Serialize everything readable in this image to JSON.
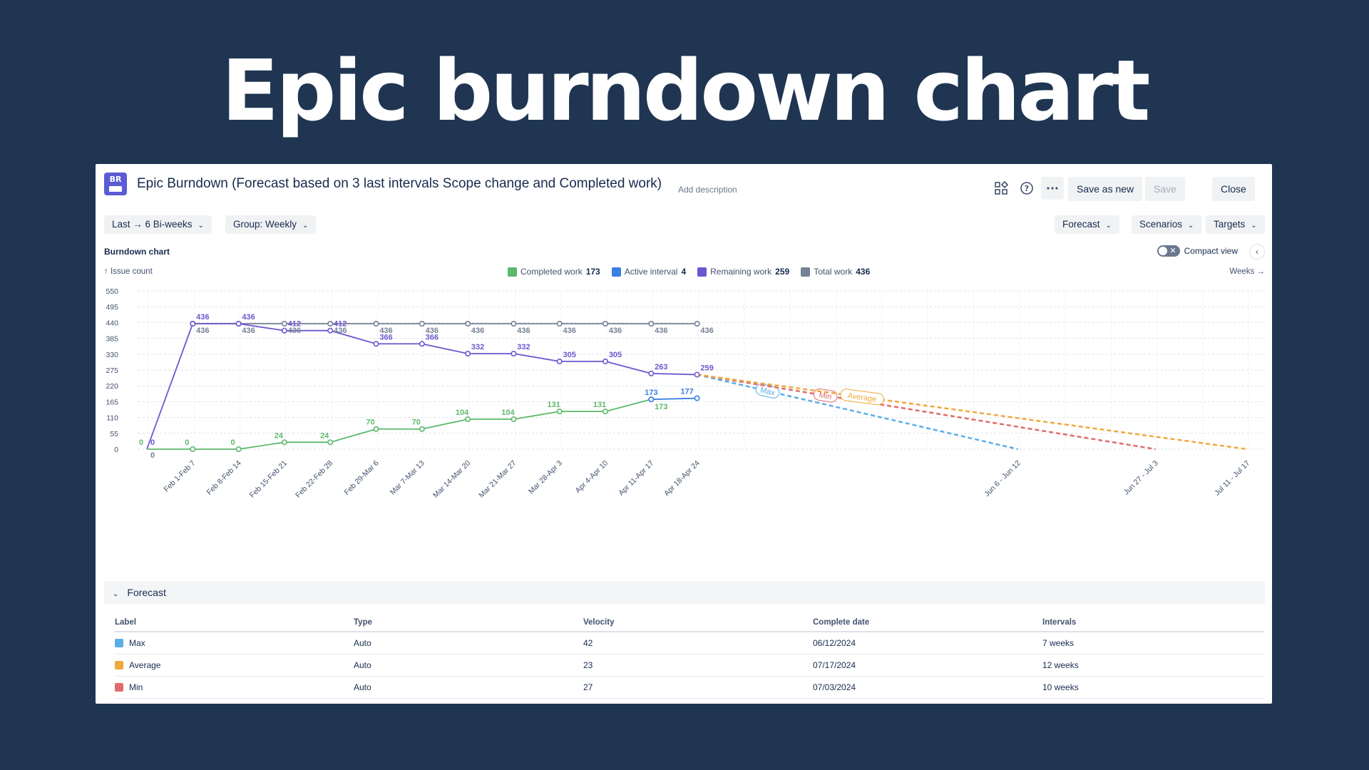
{
  "hero": {
    "title": "Epic burndown chart"
  },
  "header": {
    "app_badge": "BR",
    "title": "Epic Burndown (Forecast based on 3 last intervals Scope change and Completed work)",
    "add_description": "Add description",
    "save_as_new": "Save as new",
    "save": "Save",
    "close": "Close",
    "icons": [
      "dashboard-icon",
      "help-icon",
      "more-icon"
    ]
  },
  "filters": {
    "range": "Last → 6 Bi-weeks",
    "group": "Group: Weekly",
    "forecast": "Forecast",
    "scenarios": "Scenarios",
    "targets": "Targets"
  },
  "chart_section": {
    "label": "Burndown chart",
    "compact_view": "Compact view",
    "y_title": "↑ Issue count",
    "x_unit": "Weeks →"
  },
  "legend": [
    {
      "label": "Completed work",
      "value": "173",
      "color": "#5cb96b"
    },
    {
      "label": "Active interval",
      "value": "4",
      "color": "#3b7fe6"
    },
    {
      "label": "Remaining work",
      "value": "259",
      "color": "#6e56cf"
    },
    {
      "label": "Total work",
      "value": "436",
      "color": "#758195"
    }
  ],
  "chart_data": {
    "type": "line",
    "ylim": [
      0,
      550
    ],
    "yticks": [
      550,
      495,
      440,
      385,
      330,
      275,
      220,
      165,
      110,
      55,
      0
    ],
    "categories": [
      "Feb 1-Feb 7",
      "Feb 8-Feb 14",
      "Feb 15-Feb 21",
      "Feb 22-Feb 28",
      "Feb 29-Mar 6",
      "Mar 7-Mar 13",
      "Mar 14-Mar 20",
      "Mar 21-Mar 27",
      "Mar 28-Apr 3",
      "Apr 4-Apr 10",
      "Apr 11-Apr 17",
      "Apr 18-Apr 24"
    ],
    "forecast_categories": [
      "Jun 6 - Jun 12",
      "Jun 27 - Jul 3",
      "Jul 11 - Jul 17"
    ],
    "series": [
      {
        "name": "Total work",
        "color": "#758195",
        "x": [
          1,
          2,
          3,
          4,
          5,
          6,
          7,
          8,
          9,
          10,
          11,
          12
        ],
        "values": [
          436,
          436,
          436,
          436,
          436,
          436,
          436,
          436,
          436,
          436,
          436,
          436
        ]
      },
      {
        "name": "Remaining work",
        "color": "#6e56cf",
        "x": [
          0,
          1,
          2,
          3,
          4,
          5,
          6,
          7,
          8,
          9,
          10,
          11,
          12
        ],
        "values": [
          0,
          436,
          436,
          412,
          412,
          366,
          366,
          332,
          332,
          305,
          305,
          263,
          259
        ]
      },
      {
        "name": "Completed work",
        "color": "#5cb96b",
        "x": [
          0,
          1,
          2,
          3,
          4,
          5,
          6,
          7,
          8,
          9,
          10,
          11
        ],
        "values": [
          0,
          0,
          0,
          24,
          24,
          70,
          70,
          104,
          104,
          131,
          131,
          173
        ]
      },
      {
        "name": "Active interval",
        "color": "#3b7fe6",
        "x": [
          11,
          12
        ],
        "values": [
          173,
          177
        ]
      }
    ],
    "forecasts": [
      {
        "name": "Max",
        "color": "#5aaee8",
        "x": [
          12,
          19
        ],
        "values": [
          259,
          0
        ]
      },
      {
        "name": "Min",
        "color": "#e06c6c",
        "x": [
          12,
          22
        ],
        "values": [
          259,
          0
        ]
      },
      {
        "name": "Average",
        "color": "#f0a83c",
        "x": [
          12,
          24
        ],
        "values": [
          259,
          0
        ]
      }
    ]
  },
  "forecast_table": {
    "title": "Forecast",
    "columns": [
      "Label",
      "Type",
      "Velocity",
      "Complete date",
      "Intervals"
    ],
    "rows": [
      {
        "label": "Max",
        "color": "#5aaee8",
        "type": "Auto",
        "velocity": "42",
        "complete_date": "06/12/2024",
        "intervals": "7 weeks"
      },
      {
        "label": "Average",
        "color": "#f0a83c",
        "type": "Auto",
        "velocity": "23",
        "complete_date": "07/17/2024",
        "intervals": "12 weeks"
      },
      {
        "label": "Min",
        "color": "#e06c6c",
        "type": "Auto",
        "velocity": "27",
        "complete_date": "07/03/2024",
        "intervals": "10 weeks"
      }
    ]
  }
}
